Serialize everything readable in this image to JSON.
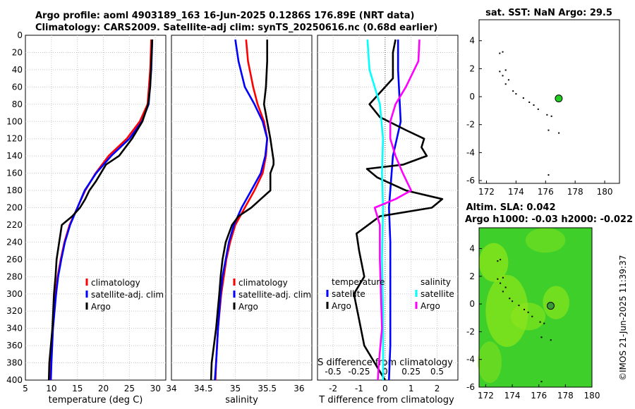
{
  "header": {
    "line1": "Argo profile: aoml 4903189_163 16-Jun-2025 0.1286S 176.89E (NRT data)",
    "line2": "Climatology: CARS2009. Satellite-adj clim: synTS_20250616.nc (0.68d earlier)"
  },
  "copyright": "©IMOS 21-Jun-2025 11:39:37",
  "colors": {
    "climatology": "#ff0000",
    "satellite": "#0000ff",
    "argo": "#000000",
    "sal_satellite": "#00ffff",
    "sal_argo": "#ff00ff",
    "sla_map_base": "#3ecf2a",
    "sla_map_high": "#8ee61a",
    "land": "#000000",
    "marker_fill_sst": "#22cc22",
    "marker_fill_sla": "#3a9a3a"
  },
  "chart_data": [
    {
      "type": "line",
      "name": "temperature",
      "xlabel": "temperature (deg C)",
      "xlim": [
        5,
        32
      ],
      "xticks": [
        5,
        10,
        15,
        20,
        25,
        30
      ],
      "ylim": [
        0,
        400
      ],
      "yticks": [
        0,
        20,
        40,
        60,
        80,
        100,
        120,
        140,
        160,
        180,
        200,
        220,
        240,
        260,
        280,
        300,
        320,
        340,
        360,
        380,
        400
      ],
      "grid": true,
      "legend": {
        "entries": [
          "climatology",
          "satellite-adj. clim",
          "Argo"
        ],
        "position": "bottom-right"
      },
      "series": [
        {
          "name": "climatology",
          "color": "#ff0000",
          "depth": [
            5,
            40,
            80,
            100,
            120,
            140,
            160,
            180,
            200,
            220,
            240,
            260,
            280,
            300,
            340,
            380,
            400
          ],
          "values": [
            29.2,
            29.0,
            28.5,
            27.0,
            24.5,
            21.0,
            18.5,
            16.5,
            15.0,
            13.5,
            12.5,
            11.8,
            11.2,
            10.8,
            10.2,
            9.9,
            9.8
          ]
        },
        {
          "name": "satellite-adj. clim",
          "color": "#0000ff",
          "depth": [
            5,
            40,
            80,
            100,
            120,
            140,
            160,
            180,
            200,
            220,
            240,
            260,
            280,
            300,
            340,
            380,
            400
          ],
          "values": [
            29.4,
            29.2,
            28.7,
            27.4,
            25.0,
            21.5,
            18.6,
            16.4,
            15.0,
            13.6,
            12.6,
            11.9,
            11.3,
            10.9,
            10.3,
            10.0,
            9.9
          ]
        },
        {
          "name": "Argo",
          "color": "#000000",
          "depth": [
            5,
            30,
            60,
            80,
            100,
            120,
            140,
            150,
            160,
            170,
            180,
            190,
            200,
            210,
            220,
            240,
            260,
            280,
            300,
            340,
            380,
            400
          ],
          "values": [
            29.4,
            29.2,
            29.0,
            28.6,
            27.5,
            25.5,
            23.0,
            20.5,
            19.5,
            18.5,
            17.3,
            16.5,
            15.5,
            14.0,
            12.0,
            11.5,
            11.0,
            10.8,
            10.5,
            10.2,
            9.6,
            9.5
          ]
        }
      ]
    },
    {
      "type": "line",
      "name": "salinity",
      "xlabel": "salinity",
      "xlim": [
        34,
        36.2
      ],
      "xticks": [
        34,
        34.5,
        35,
        35.5,
        36
      ],
      "ylim": [
        0,
        400
      ],
      "grid": true,
      "legend": {
        "entries": [
          "climatology",
          "satellite-adj. clim",
          "Argo"
        ],
        "position": "bottom-right"
      },
      "series": [
        {
          "name": "climatology",
          "color": "#ff0000",
          "depth": [
            5,
            30,
            60,
            80,
            100,
            120,
            140,
            160,
            180,
            200,
            220,
            240,
            260,
            280,
            300,
            340,
            380,
            400
          ],
          "values": [
            35.17,
            35.2,
            35.28,
            35.35,
            35.45,
            35.5,
            35.48,
            35.43,
            35.3,
            35.15,
            35.0,
            34.92,
            34.86,
            34.82,
            34.78,
            34.73,
            34.7,
            34.69
          ]
        },
        {
          "name": "satellite-adj. clim",
          "color": "#0000ff",
          "depth": [
            5,
            30,
            60,
            80,
            100,
            120,
            140,
            160,
            180,
            200,
            220,
            240,
            260,
            280,
            300,
            340,
            380,
            400
          ],
          "values": [
            35.0,
            35.05,
            35.15,
            35.3,
            35.43,
            35.5,
            35.47,
            35.4,
            35.25,
            35.1,
            34.98,
            34.9,
            34.85,
            34.8,
            34.77,
            34.73,
            34.7,
            34.68
          ]
        },
        {
          "name": "Argo",
          "color": "#000000",
          "depth": [
            5,
            30,
            60,
            80,
            100,
            120,
            145,
            150,
            160,
            180,
            190,
            200,
            210,
            220,
            240,
            260,
            280,
            300,
            340,
            380,
            400
          ],
          "values": [
            35.5,
            35.5,
            35.48,
            35.45,
            35.5,
            35.55,
            35.6,
            35.6,
            35.55,
            35.55,
            35.4,
            35.25,
            35.05,
            34.95,
            34.85,
            34.8,
            34.77,
            34.75,
            34.7,
            34.63,
            34.62
          ]
        }
      ]
    },
    {
      "type": "line",
      "name": "difference",
      "xlabel": "T difference from climatology",
      "xlabel_top": "S difference from climatology",
      "xlim": [
        -2.6,
        2.8
      ],
      "xticks": [
        -2,
        -1,
        0,
        1,
        2
      ],
      "xlim_salinity": [
        -0.65,
        0.7
      ],
      "xticks_salinity": [
        -0.5,
        -0.25,
        0,
        0.25,
        0.5
      ],
      "ylim": [
        0,
        400
      ],
      "grid": true,
      "legend": {
        "temperature_title": "temperature",
        "salinity_title": "salinity",
        "entries": [
          "satellite",
          "Argo",
          "satellite",
          "Argo"
        ],
        "position": "bottom"
      },
      "series": [
        {
          "name": "T satellite",
          "color": "#0000ff",
          "depth": [
            5,
            40,
            100,
            140,
            200,
            240,
            300,
            360,
            400
          ],
          "values": [
            0.5,
            0.5,
            0.6,
            0.3,
            0.15,
            0.2,
            0.2,
            0.2,
            0.15
          ]
        },
        {
          "name": "T Argo",
          "color": "#000000",
          "depth": [
            5,
            20,
            50,
            80,
            95,
            110,
            120,
            130,
            140,
            150,
            155,
            165,
            180,
            190,
            200,
            210,
            230,
            250,
            280,
            300,
            330,
            360,
            390,
            400
          ],
          "values": [
            0.4,
            0.3,
            0.3,
            -0.6,
            -0.2,
            0.8,
            1.5,
            1.4,
            1.6,
            0.7,
            -0.7,
            -0.3,
            0.8,
            2.2,
            1.8,
            -0.2,
            -1.1,
            -1.0,
            -0.8,
            -1.2,
            -1.0,
            -0.8,
            -0.2,
            0.0
          ]
        },
        {
          "name": "S satellite",
          "color": "#00ffff",
          "depth": [
            5,
            40,
            80,
            120,
            160,
            200,
            260,
            320,
            380,
            400
          ],
          "values": [
            -0.17,
            -0.15,
            -0.05,
            -0.02,
            -0.03,
            -0.02,
            -0.03,
            -0.02,
            -0.02,
            -0.02
          ]
        },
        {
          "name": "S Argo",
          "color": "#ff00ff",
          "depth": [
            5,
            30,
            60,
            80,
            100,
            120,
            140,
            160,
            180,
            190,
            200,
            220,
            260,
            300,
            340,
            380,
            400
          ],
          "values": [
            0.33,
            0.32,
            0.2,
            0.1,
            0.05,
            0.05,
            0.1,
            0.17,
            0.25,
            0.1,
            -0.1,
            -0.05,
            -0.05,
            -0.04,
            -0.03,
            -0.06,
            -0.07
          ]
        }
      ]
    },
    {
      "type": "scatter",
      "name": "sst_map",
      "title": "sat. SST: NaN Argo: 29.5",
      "xlim": [
        171.5,
        181
      ],
      "xticks": [
        172,
        174,
        176,
        178,
        180
      ],
      "ylim": [
        -6.2,
        5.5
      ],
      "yticks": [
        4,
        2,
        0,
        -2,
        -4,
        -6
      ],
      "marker": {
        "lon": 176.89,
        "lat": -0.13
      }
    },
    {
      "type": "heatmap",
      "name": "sla_map",
      "title": "Altim. SLA: 0.042",
      "subtitle": "Argo h1000: -0.03 h2000: -0.022",
      "xlim": [
        171.5,
        180
      ],
      "xticks": [
        172,
        174,
        176,
        178,
        180
      ],
      "ylim": [
        -6,
        5.5
      ],
      "yticks": [
        4,
        2,
        0,
        -2,
        -4,
        -6
      ],
      "marker": {
        "lon": 176.89,
        "lat": -0.13
      }
    }
  ]
}
